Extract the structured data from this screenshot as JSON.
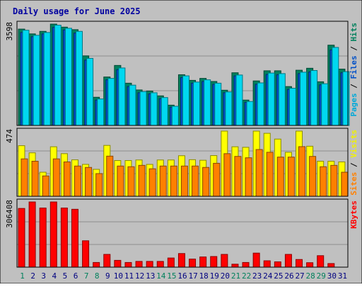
{
  "chart_data": {
    "type": "bar",
    "title": "Daily usage for June 2025",
    "categories": [
      "1",
      "2",
      "3",
      "4",
      "5",
      "6",
      "7",
      "8",
      "9",
      "10",
      "11",
      "12",
      "13",
      "14",
      "15",
      "16",
      "17",
      "18",
      "19",
      "20",
      "21",
      "22",
      "23",
      "24",
      "25",
      "26",
      "27",
      "28",
      "29",
      "30",
      "31"
    ],
    "weekend_days": [
      "1",
      "7",
      "8",
      "14",
      "15",
      "21",
      "22",
      "28",
      "29"
    ],
    "panels": [
      {
        "id": "hits-files-pages",
        "ytick_label": "3598",
        "ymax": 3598,
        "legend_parts": [
          {
            "text": "Pages",
            "color": "#00a8d8"
          },
          {
            "text": " / ",
            "color": "#000000"
          },
          {
            "text": "Files",
            "color": "#0050c8"
          },
          {
            "text": " / ",
            "color": "#000000"
          },
          {
            "text": "Hits",
            "color": "#00805c"
          }
        ],
        "series": [
          {
            "name": "Hits",
            "color": "#00805c",
            "values": [
              3420,
              3250,
              3340,
              3598,
              3490,
              3400,
              2470,
              1000,
              1720,
              2130,
              1500,
              1260,
              1220,
              1050,
              720,
              1800,
              1600,
              1670,
              1560,
              1250,
              1870,
              900,
              1580,
              1940,
              1940,
              1380,
              1960,
              2030,
              1550,
              2850,
              2000
            ]
          },
          {
            "name": "Files",
            "color": "#0050c8",
            "values": [
              3300,
              3150,
              3250,
              3480,
              3390,
              3280,
              2320,
              900,
              1620,
              1980,
              1380,
              1160,
              1120,
              950,
              650,
              1700,
              1500,
              1560,
              1460,
              1160,
              1760,
              820,
              1460,
              1810,
              1800,
              1280,
              1840,
              1900,
              1440,
              2680,
              1870
            ]
          },
          {
            "name": "Pages",
            "color": "#00d8f0",
            "values": [
              3380,
              3200,
              3300,
              3560,
              3450,
              3340,
              2380,
              940,
              1670,
              2040,
              1430,
              1200,
              1160,
              990,
              680,
              1760,
              1540,
              1620,
              1500,
              1190,
              1790,
              850,
              1510,
              1860,
              1840,
              1320,
              1890,
              1950,
              1480,
              2770,
              1910
            ]
          }
        ]
      },
      {
        "id": "visits-sites",
        "ytick_label": "474",
        "ymax": 474,
        "legend_parts": [
          {
            "text": "Sites",
            "color": "#ff8000"
          },
          {
            "text": " / ",
            "color": "#000000"
          },
          {
            "text": "Visits",
            "color": "#f0f000"
          }
        ],
        "series": [
          {
            "name": "Visits",
            "color": "#ffff00",
            "values": [
              368,
              316,
              175,
              360,
              310,
              265,
              232,
              196,
              370,
              260,
              260,
              264,
              232,
              264,
              264,
              295,
              266,
              262,
              296,
              474,
              360,
              356,
              474,
              458,
              416,
              320,
              474,
              364,
              255,
              255,
              250
            ]
          },
          {
            "name": "Sites",
            "color": "#ff8000",
            "values": [
              272,
              255,
              148,
              272,
              250,
              220,
              210,
              165,
              292,
              220,
              215,
              225,
              200,
              220,
              220,
              220,
              220,
              210,
              240,
              310,
              290,
              280,
              340,
              320,
              285,
              285,
              361,
              290,
              215,
              225,
              175
            ]
          }
        ]
      },
      {
        "id": "kbytes",
        "ytick_label": "306408",
        "ymax": 306408,
        "legend_parts": [
          {
            "text": "KBytes",
            "color": "#ff0000"
          }
        ],
        "series": [
          {
            "name": "KBytes",
            "color": "#ff0000",
            "values": [
              276000,
              306408,
              278000,
              306408,
              278000,
              272000,
              124000,
              22000,
              60000,
              32000,
              22000,
              27000,
              27000,
              27000,
              43000,
              64000,
              38000,
              48000,
              50000,
              60000,
              14000,
              22000,
              66000,
              30000,
              25000,
              60000,
              36000,
              21000,
              54000,
              17000,
              0
            ]
          }
        ]
      }
    ]
  }
}
